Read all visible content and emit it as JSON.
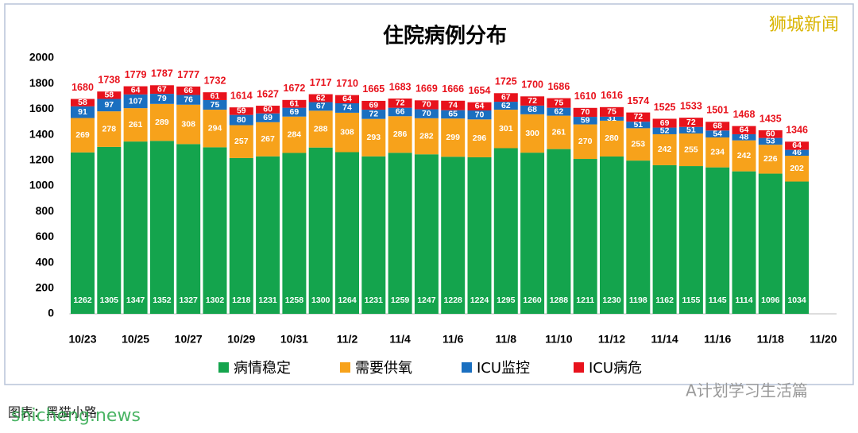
{
  "chart_data": {
    "type": "bar",
    "stacked": true,
    "title": "住院病例分布",
    "categories": [
      "10/23",
      null,
      "10/25",
      null,
      "10/27",
      null,
      "10/29",
      null,
      "10/31",
      null,
      "11/2",
      null,
      "11/4",
      null,
      "11/6",
      null,
      "11/8",
      null,
      "11/10",
      null,
      "11/12",
      null,
      "11/14",
      null,
      "11/16",
      null,
      "11/18",
      null,
      "11/20"
    ],
    "series": [
      {
        "name": "病情稳定",
        "color": "#14a44d",
        "values": [
          1262,
          1305,
          1347,
          1352,
          1327,
          1302,
          1218,
          1231,
          1258,
          1300,
          1264,
          1231,
          1259,
          1247,
          1228,
          1224,
          1295,
          1260,
          1288,
          1211,
          1230,
          1198,
          1162,
          1155,
          1145,
          1114,
          1096,
          1034,
          null
        ]
      },
      {
        "name": "需要供氧",
        "color": "#f7a21b",
        "values": [
          269,
          278,
          261,
          289,
          308,
          294,
          257,
          267,
          284,
          288,
          308,
          293,
          286,
          282,
          299,
          296,
          301,
          300,
          261,
          270,
          280,
          253,
          242,
          255,
          234,
          242,
          226,
          202,
          null
        ]
      },
      {
        "name": "ICU监控",
        "color": "#1a6fc0",
        "values": [
          91,
          97,
          107,
          79,
          76,
          75,
          80,
          69,
          69,
          67,
          74,
          72,
          66,
          70,
          65,
          70,
          62,
          68,
          62,
          59,
          31,
          51,
          52,
          51,
          54,
          48,
          53,
          46,
          null
        ]
      },
      {
        "name": "ICU病危",
        "color": "#e8121c",
        "values": [
          58,
          58,
          64,
          67,
          66,
          61,
          59,
          60,
          61,
          62,
          64,
          69,
          72,
          70,
          74,
          64,
          67,
          72,
          75,
          70,
          75,
          72,
          69,
          72,
          68,
          64,
          60,
          64,
          null
        ]
      }
    ],
    "totals": [
      1680,
      1738,
      1779,
      1787,
      1777,
      1732,
      1614,
      1627,
      1672,
      1717,
      1710,
      1665,
      1683,
      1669,
      1666,
      1654,
      1725,
      1700,
      1686,
      1610,
      1616,
      1574,
      1525,
      1533,
      1501,
      1468,
      1435,
      1346,
      null
    ],
    "ylim": [
      0,
      2000
    ],
    "yticks": [
      0,
      200,
      400,
      600,
      800,
      1000,
      1200,
      1400,
      1600,
      1800,
      2000
    ],
    "grid": false,
    "legend": "bottom"
  },
  "watermark": "狮城新闻",
  "wechat": "A计划学习生活篇",
  "site": "shicheng.news",
  "caption": "图表：黑猫小路"
}
